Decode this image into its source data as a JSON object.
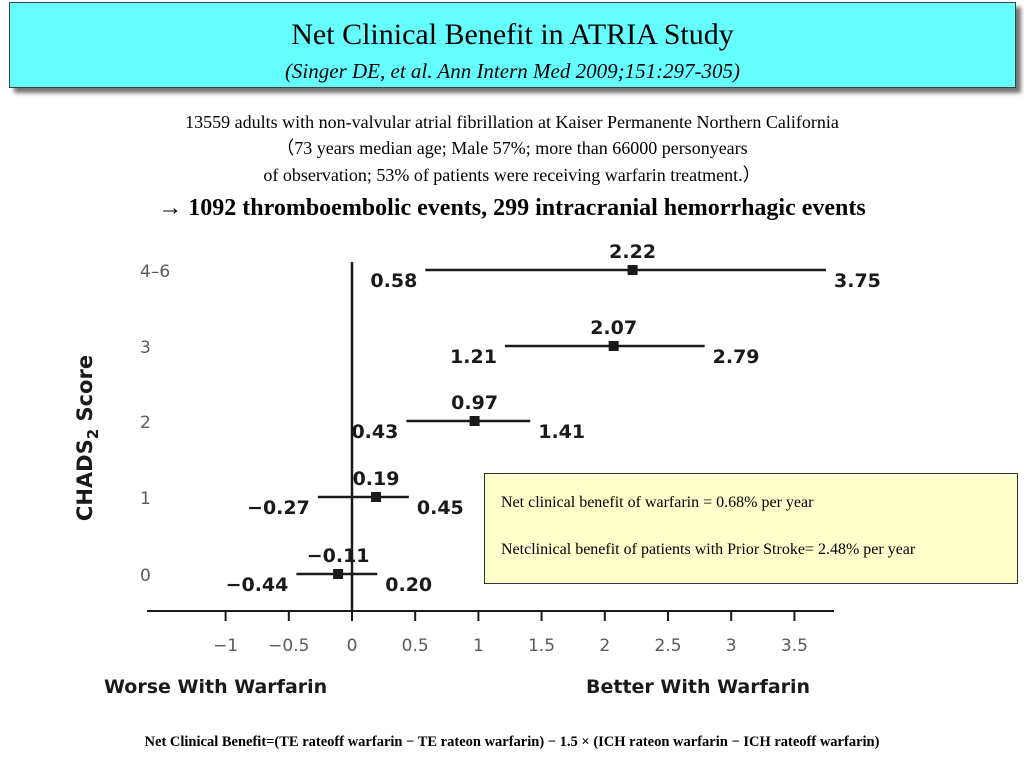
{
  "header": {
    "title": "Net Clinical Benefit in ATRIA Study",
    "subtitle": "(Singer DE, et al. Ann Intern Med 2009;151:297-305)"
  },
  "intro": {
    "line1": "13559 adults with non-valvular atrial fibrillation at Kaiser Permanente Northern California",
    "line2": "（73 years median age; Male 57%; more than 66000 personyears",
    "line3": "of observation; 53% of patients were receiving warfarin treatment.）",
    "line4": "→ 1092 thromboembolic events, 299 intracranial hemorrhagic events"
  },
  "note": {
    "line1": "Net clinical benefit of warfarin = 0.68% per year",
    "line2": "Netclinical benefit of patients with Prior Stroke= 2.48% per year"
  },
  "formula": "Net Clinical Benefit=(TE rateoff warfarin − TE rateon warfarin) − 1.5 × (ICH rateon warfarin − ICH rateoff warfarin)",
  "chart_data": {
    "type": "forest",
    "ylabel_main": "CHADS",
    "ylabel_sub": "2",
    "ylabel_tail": " Score",
    "x_left_label": "Worse With Warfarin",
    "x_right_label": "Better With Warfarin",
    "xlim": [
      -1.6,
      3.75
    ],
    "x_ticks": [
      -1,
      -0.5,
      0,
      0.5,
      1,
      1.5,
      2,
      2.5,
      3,
      3.5
    ],
    "x_tick_labels": [
      "−1",
      "−0.5",
      "0",
      "0.5",
      "1",
      "1.5",
      "2",
      "2.5",
      "3",
      "3.5"
    ],
    "rows": [
      {
        "category": "4–6",
        "estimate": 2.22,
        "lower": 0.58,
        "upper": 3.75,
        "estimate_label": "2.22",
        "lower_label": "0.58",
        "upper_label": "3.75"
      },
      {
        "category": "3",
        "estimate": 2.07,
        "lower": 1.21,
        "upper": 2.79,
        "estimate_label": "2.07",
        "lower_label": "1.21",
        "upper_label": "2.79"
      },
      {
        "category": "2",
        "estimate": 0.97,
        "lower": 0.43,
        "upper": 1.41,
        "estimate_label": "0.97",
        "lower_label": "0.43",
        "upper_label": "1.41"
      },
      {
        "category": "1",
        "estimate": 0.19,
        "lower": -0.27,
        "upper": 0.45,
        "estimate_label": "0.19",
        "lower_label": "−0.27",
        "upper_label": "0.45"
      },
      {
        "category": "0",
        "estimate": -0.11,
        "lower": -0.44,
        "upper": 0.2,
        "estimate_label": "−0.11",
        "lower_label": "−0.44",
        "upper_label": "0.20"
      }
    ],
    "colors": {
      "marker": "#1a1a1a",
      "axis": "#1a1a1a",
      "tick_text": "#5a5a5a"
    }
  }
}
